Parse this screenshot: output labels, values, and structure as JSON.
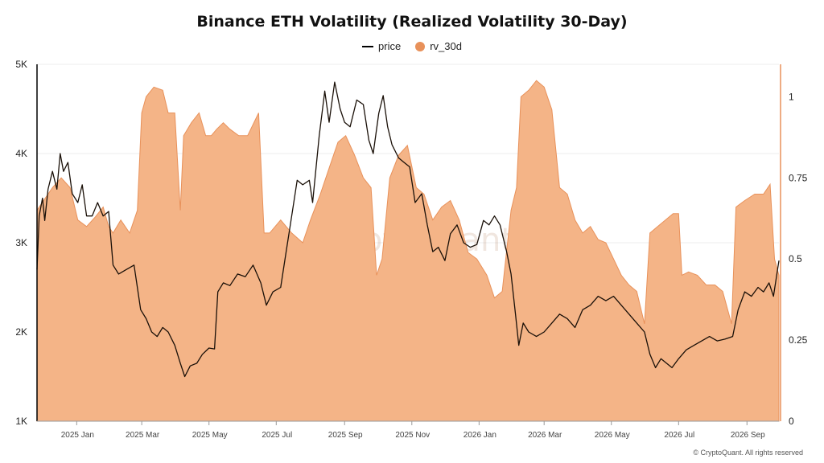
{
  "title": "Binance ETH Volatility (Realized Volatility 30-Day)",
  "legend": {
    "price_label": "price",
    "rv_label": "rv_30d"
  },
  "watermark": "CryptoQuant",
  "credit": "© CryptoQuant. All rights reserved",
  "colors": {
    "price": "#1a1008",
    "rv_fill": "#f4b487",
    "rv_stroke": "#e8915a"
  },
  "chart_data": {
    "type": "area",
    "xlabel": "",
    "ylabel_left": "",
    "ylabel_right": "",
    "x_range": [
      "2024-11-26",
      "2026-09-30"
    ],
    "x_ticks": [
      "2025 Jan",
      "2025 Mar",
      "2025 May",
      "2025 Jul",
      "2025 Sep",
      "2025 Nov",
      "2026 Jan",
      "2026 Mar",
      "2026 May",
      "2026 Jul",
      "2026 Sep"
    ],
    "y_left": {
      "ticks": [
        "1K",
        "2K",
        "3K",
        "4K",
        "5K"
      ],
      "range": [
        1000,
        5000
      ]
    },
    "y_right": {
      "ticks": [
        "0",
        "0.25",
        "0.5",
        "0.75",
        "1"
      ],
      "range": [
        0,
        1.1
      ]
    },
    "series": [
      {
        "name": "price",
        "axis": "left",
        "points": [
          [
            "2024-11-26",
            2700
          ],
          [
            "2024-11-28",
            3300
          ],
          [
            "2024-12-01",
            3500
          ],
          [
            "2024-12-03",
            3250
          ],
          [
            "2024-12-06",
            3600
          ],
          [
            "2024-12-10",
            3800
          ],
          [
            "2024-12-14",
            3600
          ],
          [
            "2024-12-17",
            4000
          ],
          [
            "2024-12-20",
            3800
          ],
          [
            "2024-12-24",
            3900
          ],
          [
            "2024-12-28",
            3550
          ],
          [
            "2025-01-02",
            3450
          ],
          [
            "2025-01-06",
            3650
          ],
          [
            "2025-01-10",
            3300
          ],
          [
            "2025-01-15",
            3300
          ],
          [
            "2025-01-20",
            3450
          ],
          [
            "2025-01-25",
            3300
          ],
          [
            "2025-01-30",
            3350
          ],
          [
            "2025-02-03",
            2750
          ],
          [
            "2025-02-08",
            2650
          ],
          [
            "2025-02-15",
            2700
          ],
          [
            "2025-02-22",
            2750
          ],
          [
            "2025-02-28",
            2250
          ],
          [
            "2025-03-05",
            2150
          ],
          [
            "2025-03-10",
            2000
          ],
          [
            "2025-03-15",
            1950
          ],
          [
            "2025-03-20",
            2050
          ],
          [
            "2025-03-25",
            2000
          ],
          [
            "2025-03-31",
            1850
          ],
          [
            "2025-04-05",
            1650
          ],
          [
            "2025-04-09",
            1500
          ],
          [
            "2025-04-14",
            1620
          ],
          [
            "2025-04-20",
            1650
          ],
          [
            "2025-04-25",
            1750
          ],
          [
            "2025-05-01",
            1820
          ],
          [
            "2025-05-06",
            1810
          ],
          [
            "2025-05-09",
            2450
          ],
          [
            "2025-05-14",
            2550
          ],
          [
            "2025-05-20",
            2520
          ],
          [
            "2025-05-27",
            2650
          ],
          [
            "2025-06-03",
            2620
          ],
          [
            "2025-06-10",
            2750
          ],
          [
            "2025-06-17",
            2550
          ],
          [
            "2025-06-22",
            2300
          ],
          [
            "2025-06-28",
            2450
          ],
          [
            "2025-07-05",
            2500
          ],
          [
            "2025-07-10",
            2900
          ],
          [
            "2025-07-15",
            3300
          ],
          [
            "2025-07-20",
            3700
          ],
          [
            "2025-07-25",
            3650
          ],
          [
            "2025-07-31",
            3700
          ],
          [
            "2025-08-03",
            3450
          ],
          [
            "2025-08-09",
            4200
          ],
          [
            "2025-08-14",
            4700
          ],
          [
            "2025-08-18",
            4350
          ],
          [
            "2025-08-23",
            4800
          ],
          [
            "2025-08-28",
            4500
          ],
          [
            "2025-09-01",
            4350
          ],
          [
            "2025-09-06",
            4300
          ],
          [
            "2025-09-12",
            4600
          ],
          [
            "2025-09-18",
            4550
          ],
          [
            "2025-09-23",
            4150
          ],
          [
            "2025-09-27",
            4000
          ],
          [
            "2025-10-02",
            4450
          ],
          [
            "2025-10-06",
            4650
          ],
          [
            "2025-10-10",
            4300
          ],
          [
            "2025-10-14",
            4100
          ],
          [
            "2025-10-20",
            3950
          ],
          [
            "2025-10-25",
            3900
          ],
          [
            "2025-10-30",
            3850
          ],
          [
            "2025-11-04",
            3450
          ],
          [
            "2025-11-10",
            3550
          ],
          [
            "2025-11-15",
            3200
          ],
          [
            "2025-11-20",
            2900
          ],
          [
            "2025-11-25",
            2950
          ],
          [
            "2025-12-01",
            2800
          ],
          [
            "2025-12-06",
            3100
          ],
          [
            "2025-12-12",
            3200
          ],
          [
            "2025-12-18",
            3000
          ],
          [
            "2025-12-24",
            2950
          ],
          [
            "2025-12-30",
            2980
          ],
          [
            "2026-01-05",
            3250
          ],
          [
            "2026-01-10",
            3200
          ],
          [
            "2026-01-15",
            3300
          ],
          [
            "2026-01-20",
            3200
          ],
          [
            "2026-01-26",
            2900
          ],
          [
            "2026-01-30",
            2650
          ],
          [
            "2026-02-03",
            2200
          ],
          [
            "2026-02-06",
            1850
          ],
          [
            "2026-02-10",
            2100
          ],
          [
            "2026-02-15",
            2000
          ],
          [
            "2026-02-22",
            1950
          ],
          [
            "2026-03-01",
            2000
          ],
          [
            "2026-03-08",
            2100
          ],
          [
            "2026-03-15",
            2200
          ],
          [
            "2026-03-22",
            2150
          ],
          [
            "2026-03-29",
            2050
          ],
          [
            "2026-04-05",
            2250
          ],
          [
            "2026-04-12",
            2300
          ],
          [
            "2026-04-19",
            2400
          ],
          [
            "2026-04-26",
            2350
          ],
          [
            "2026-05-03",
            2400
          ],
          [
            "2026-05-10",
            2300
          ],
          [
            "2026-05-17",
            2200
          ],
          [
            "2026-05-24",
            2100
          ],
          [
            "2026-05-31",
            2000
          ],
          [
            "2026-06-05",
            1750
          ],
          [
            "2026-06-10",
            1600
          ],
          [
            "2026-06-15",
            1700
          ],
          [
            "2026-06-20",
            1650
          ],
          [
            "2026-06-25",
            1600
          ],
          [
            "2026-07-01",
            1700
          ],
          [
            "2026-07-08",
            1800
          ],
          [
            "2026-07-15",
            1850
          ],
          [
            "2026-07-22",
            1900
          ],
          [
            "2026-07-29",
            1950
          ],
          [
            "2026-08-05",
            1900
          ],
          [
            "2026-08-12",
            1920
          ],
          [
            "2026-08-19",
            1950
          ],
          [
            "2026-08-24",
            2250
          ],
          [
            "2026-08-30",
            2450
          ],
          [
            "2026-09-05",
            2400
          ],
          [
            "2026-09-11",
            2500
          ],
          [
            "2026-09-16",
            2450
          ],
          [
            "2026-09-21",
            2550
          ],
          [
            "2026-09-25",
            2400
          ],
          [
            "2026-09-30",
            2800
          ]
        ]
      },
      {
        "name": "rv_30d",
        "axis": "right",
        "points": [
          [
            "2024-11-26",
            0.65
          ],
          [
            "2024-12-02",
            0.68
          ],
          [
            "2024-12-10",
            0.72
          ],
          [
            "2024-12-18",
            0.75
          ],
          [
            "2024-12-26",
            0.72
          ],
          [
            "2025-01-02",
            0.62
          ],
          [
            "2025-01-10",
            0.6
          ],
          [
            "2025-01-18",
            0.63
          ],
          [
            "2025-01-25",
            0.66
          ],
          [
            "2025-01-30",
            0.6
          ],
          [
            "2025-02-03",
            0.58
          ],
          [
            "2025-02-10",
            0.62
          ],
          [
            "2025-02-18",
            0.58
          ],
          [
            "2025-02-25",
            0.65
          ],
          [
            "2025-03-01",
            0.95
          ],
          [
            "2025-03-05",
            1.0
          ],
          [
            "2025-03-12",
            1.03
          ],
          [
            "2025-03-20",
            1.02
          ],
          [
            "2025-03-25",
            0.95
          ],
          [
            "2025-03-31",
            0.95
          ],
          [
            "2025-04-05",
            0.65
          ],
          [
            "2025-04-08",
            0.88
          ],
          [
            "2025-04-15",
            0.92
          ],
          [
            "2025-04-22",
            0.95
          ],
          [
            "2025-04-28",
            0.88
          ],
          [
            "2025-05-03",
            0.88
          ],
          [
            "2025-05-08",
            0.9
          ],
          [
            "2025-05-14",
            0.92
          ],
          [
            "2025-05-20",
            0.9
          ],
          [
            "2025-05-28",
            0.88
          ],
          [
            "2025-06-05",
            0.88
          ],
          [
            "2025-06-15",
            0.95
          ],
          [
            "2025-06-20",
            0.58
          ],
          [
            "2025-06-25",
            0.58
          ],
          [
            "2025-07-05",
            0.62
          ],
          [
            "2025-07-15",
            0.58
          ],
          [
            "2025-07-25",
            0.55
          ],
          [
            "2025-08-01",
            0.62
          ],
          [
            "2025-08-10",
            0.7
          ],
          [
            "2025-08-18",
            0.78
          ],
          [
            "2025-08-26",
            0.86
          ],
          [
            "2025-09-02",
            0.88
          ],
          [
            "2025-09-10",
            0.82
          ],
          [
            "2025-09-18",
            0.75
          ],
          [
            "2025-09-25",
            0.72
          ],
          [
            "2025-09-30",
            0.45
          ],
          [
            "2025-10-05",
            0.5
          ],
          [
            "2025-10-12",
            0.75
          ],
          [
            "2025-10-20",
            0.82
          ],
          [
            "2025-10-28",
            0.85
          ],
          [
            "2025-11-05",
            0.72
          ],
          [
            "2025-11-12",
            0.7
          ],
          [
            "2025-11-20",
            0.62
          ],
          [
            "2025-11-28",
            0.66
          ],
          [
            "2025-12-06",
            0.68
          ],
          [
            "2025-12-14",
            0.62
          ],
          [
            "2025-12-22",
            0.52
          ],
          [
            "2025-12-30",
            0.5
          ],
          [
            "2026-01-08",
            0.45
          ],
          [
            "2026-01-15",
            0.38
          ],
          [
            "2026-01-22",
            0.4
          ],
          [
            "2026-01-30",
            0.65
          ],
          [
            "2026-02-04",
            0.72
          ],
          [
            "2026-02-08",
            1.0
          ],
          [
            "2026-02-15",
            1.02
          ],
          [
            "2026-02-22",
            1.05
          ],
          [
            "2026-03-01",
            1.03
          ],
          [
            "2026-03-08",
            0.96
          ],
          [
            "2026-03-15",
            0.72
          ],
          [
            "2026-03-22",
            0.7
          ],
          [
            "2026-03-29",
            0.62
          ],
          [
            "2026-04-05",
            0.58
          ],
          [
            "2026-04-12",
            0.6
          ],
          [
            "2026-04-19",
            0.56
          ],
          [
            "2026-04-26",
            0.55
          ],
          [
            "2026-05-03",
            0.5
          ],
          [
            "2026-05-10",
            0.45
          ],
          [
            "2026-05-17",
            0.42
          ],
          [
            "2026-05-24",
            0.4
          ],
          [
            "2026-05-31",
            0.3
          ],
          [
            "2026-06-05",
            0.58
          ],
          [
            "2026-06-12",
            0.6
          ],
          [
            "2026-06-19",
            0.62
          ],
          [
            "2026-06-26",
            0.64
          ],
          [
            "2026-07-01",
            0.64
          ],
          [
            "2026-07-04",
            0.45
          ],
          [
            "2026-07-10",
            0.46
          ],
          [
            "2026-07-18",
            0.45
          ],
          [
            "2026-07-26",
            0.42
          ],
          [
            "2026-08-03",
            0.42
          ],
          [
            "2026-08-10",
            0.4
          ],
          [
            "2026-08-18",
            0.3
          ],
          [
            "2026-08-22",
            0.66
          ],
          [
            "2026-08-30",
            0.68
          ],
          [
            "2026-09-08",
            0.7
          ],
          [
            "2026-09-16",
            0.7
          ],
          [
            "2026-09-22",
            0.73
          ],
          [
            "2026-09-26",
            0.5
          ],
          [
            "2026-09-30",
            0.45
          ]
        ]
      }
    ],
    "grid": true,
    "legend_position": "top-center"
  }
}
